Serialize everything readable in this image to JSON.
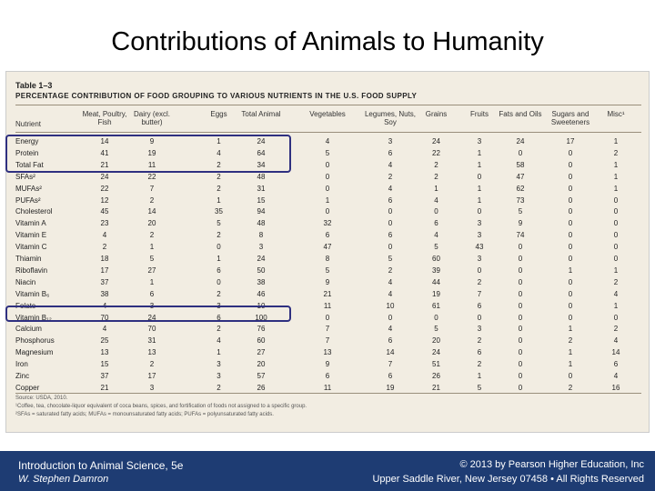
{
  "slide": {
    "title": "Contributions of Animals to Humanity"
  },
  "table": {
    "label": "Table 1–3",
    "caption": "Percentage Contribution of Food Grouping to Various Nutrients in the U.S. Food Supply",
    "columns": [
      "Nutrient",
      "Meat, Poultry, Fish",
      "Dairy (excl. butter)",
      "Eggs",
      "Total Animal",
      "Vegetables",
      "Legumes, Nuts, Soy",
      "Grains",
      "Fruits",
      "Fats and Oils",
      "Sugars and Sweeteners",
      "Misc¹"
    ],
    "rows": [
      [
        "Energy",
        "14",
        "9",
        "1",
        "24",
        "4",
        "3",
        "24",
        "3",
        "24",
        "17",
        "1"
      ],
      [
        "Protein",
        "41",
        "19",
        "4",
        "64",
        "5",
        "6",
        "22",
        "1",
        "0",
        "0",
        "2"
      ],
      [
        "Total Fat",
        "21",
        "11",
        "2",
        "34",
        "0",
        "4",
        "2",
        "1",
        "58",
        "0",
        "1"
      ],
      [
        "SFAs²",
        "24",
        "22",
        "2",
        "48",
        "0",
        "2",
        "2",
        "0",
        "47",
        "0",
        "1"
      ],
      [
        "MUFAs²",
        "22",
        "7",
        "2",
        "31",
        "0",
        "4",
        "1",
        "1",
        "62",
        "0",
        "1"
      ],
      [
        "PUFAs²",
        "12",
        "2",
        "1",
        "15",
        "1",
        "6",
        "4",
        "1",
        "73",
        "0",
        "0"
      ],
      [
        "Cholesterol",
        "45",
        "14",
        "35",
        "94",
        "0",
        "0",
        "0",
        "0",
        "5",
        "0",
        "0"
      ],
      [
        "Vitamin A",
        "23",
        "20",
        "5",
        "48",
        "32",
        "0",
        "6",
        "3",
        "9",
        "0",
        "0"
      ],
      [
        "Vitamin E",
        "4",
        "2",
        "2",
        "8",
        "6",
        "6",
        "4",
        "3",
        "74",
        "0",
        "0"
      ],
      [
        "Vitamin C",
        "2",
        "1",
        "0",
        "3",
        "47",
        "0",
        "5",
        "43",
        "0",
        "0",
        "0"
      ],
      [
        "Thiamin",
        "18",
        "5",
        "1",
        "24",
        "8",
        "5",
        "60",
        "3",
        "0",
        "0",
        "0"
      ],
      [
        "Riboflavin",
        "17",
        "27",
        "6",
        "50",
        "5",
        "2",
        "39",
        "0",
        "0",
        "1",
        "1"
      ],
      [
        "Niacin",
        "37",
        "1",
        "0",
        "38",
        "9",
        "4",
        "44",
        "2",
        "0",
        "0",
        "2"
      ],
      [
        "Vitamin B₆",
        "38",
        "6",
        "2",
        "46",
        "21",
        "4",
        "19",
        "7",
        "0",
        "0",
        "4"
      ],
      [
        "Folate",
        "4",
        "3",
        "3",
        "10",
        "11",
        "10",
        "61",
        "6",
        "0",
        "0",
        "1"
      ],
      [
        "Vitamin B₁₂",
        "70",
        "24",
        "6",
        "100",
        "0",
        "0",
        "0",
        "0",
        "0",
        "0",
        "0"
      ],
      [
        "Calcium",
        "4",
        "70",
        "2",
        "76",
        "7",
        "4",
        "5",
        "3",
        "0",
        "1",
        "2"
      ],
      [
        "Phosphorus",
        "25",
        "31",
        "4",
        "60",
        "7",
        "6",
        "20",
        "2",
        "0",
        "2",
        "4"
      ],
      [
        "Magnesium",
        "13",
        "13",
        "1",
        "27",
        "13",
        "14",
        "24",
        "6",
        "0",
        "1",
        "14"
      ],
      [
        "Iron",
        "15",
        "2",
        "3",
        "20",
        "9",
        "7",
        "51",
        "2",
        "0",
        "1",
        "6"
      ],
      [
        "Zinc",
        "37",
        "17",
        "3",
        "57",
        "6",
        "6",
        "26",
        "1",
        "0",
        "0",
        "4"
      ],
      [
        "Copper",
        "21",
        "3",
        "2",
        "26",
        "11",
        "19",
        "21",
        "5",
        "0",
        "2",
        "16"
      ]
    ],
    "footnotes": [
      "Source: USDA, 2010.",
      "¹Coffee, tea, chocolate-liquor equivalent of coca beans, spices, and fortification of foods not assigned to a specific group.",
      "²SFAs = saturated fatty acids; MUFAs = monounsaturated fatty acids; PUFAs = polyunsaturated fatty acids."
    ]
  },
  "footer": {
    "left_main": "Introduction to Animal Science, 5e",
    "left_sub": "W. Stephen Damron",
    "right_main": "© 2013 by Pearson Higher Education, Inc",
    "right_sub": "Upper Saddle River, New Jersey 07458 • All Rights Reserved"
  },
  "colors": {
    "highlight_box": "#2f3080",
    "footer_bar": "#1e3c73",
    "table_panel": "#f2ede2"
  }
}
